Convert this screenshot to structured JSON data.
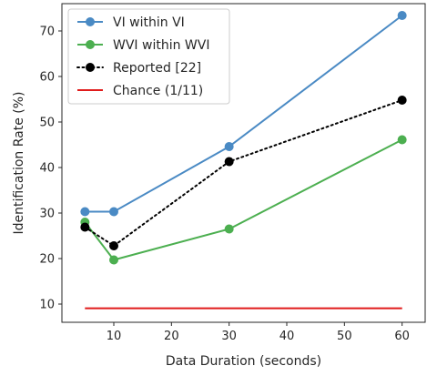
{
  "chart_data": {
    "type": "line",
    "title": "",
    "xlabel": "Data Duration (seconds)",
    "ylabel": "Identification Rate (%)",
    "xlim": [
      1,
      64
    ],
    "ylim": [
      6,
      76
    ],
    "xticks": [
      10,
      20,
      30,
      40,
      50,
      60
    ],
    "yticks": [
      10,
      20,
      30,
      40,
      50,
      60,
      70
    ],
    "grid": false,
    "legend_position": "top-left",
    "series": [
      {
        "name": "VI within VI",
        "color": "#4a8ac4",
        "style": "solid",
        "marker": "circle",
        "x": [
          5,
          10,
          30,
          60
        ],
        "y": [
          30.3,
          30.3,
          44.6,
          73.4
        ]
      },
      {
        "name": "WVI within WVI",
        "color": "#4caf50",
        "style": "solid",
        "marker": "circle",
        "x": [
          5,
          10,
          30,
          60
        ],
        "y": [
          28.0,
          19.7,
          26.5,
          46.1
        ]
      },
      {
        "name": "Reported [22]",
        "color": "#000000",
        "style": "dotted",
        "marker": "circle",
        "x": [
          5,
          10,
          30,
          60
        ],
        "y": [
          26.9,
          22.8,
          41.3,
          54.8
        ]
      },
      {
        "name": "Chance (1/11)",
        "color": "#e01b1b",
        "style": "solid",
        "marker": "none",
        "x": [
          5,
          60
        ],
        "y": [
          9.09,
          9.09
        ]
      }
    ]
  }
}
